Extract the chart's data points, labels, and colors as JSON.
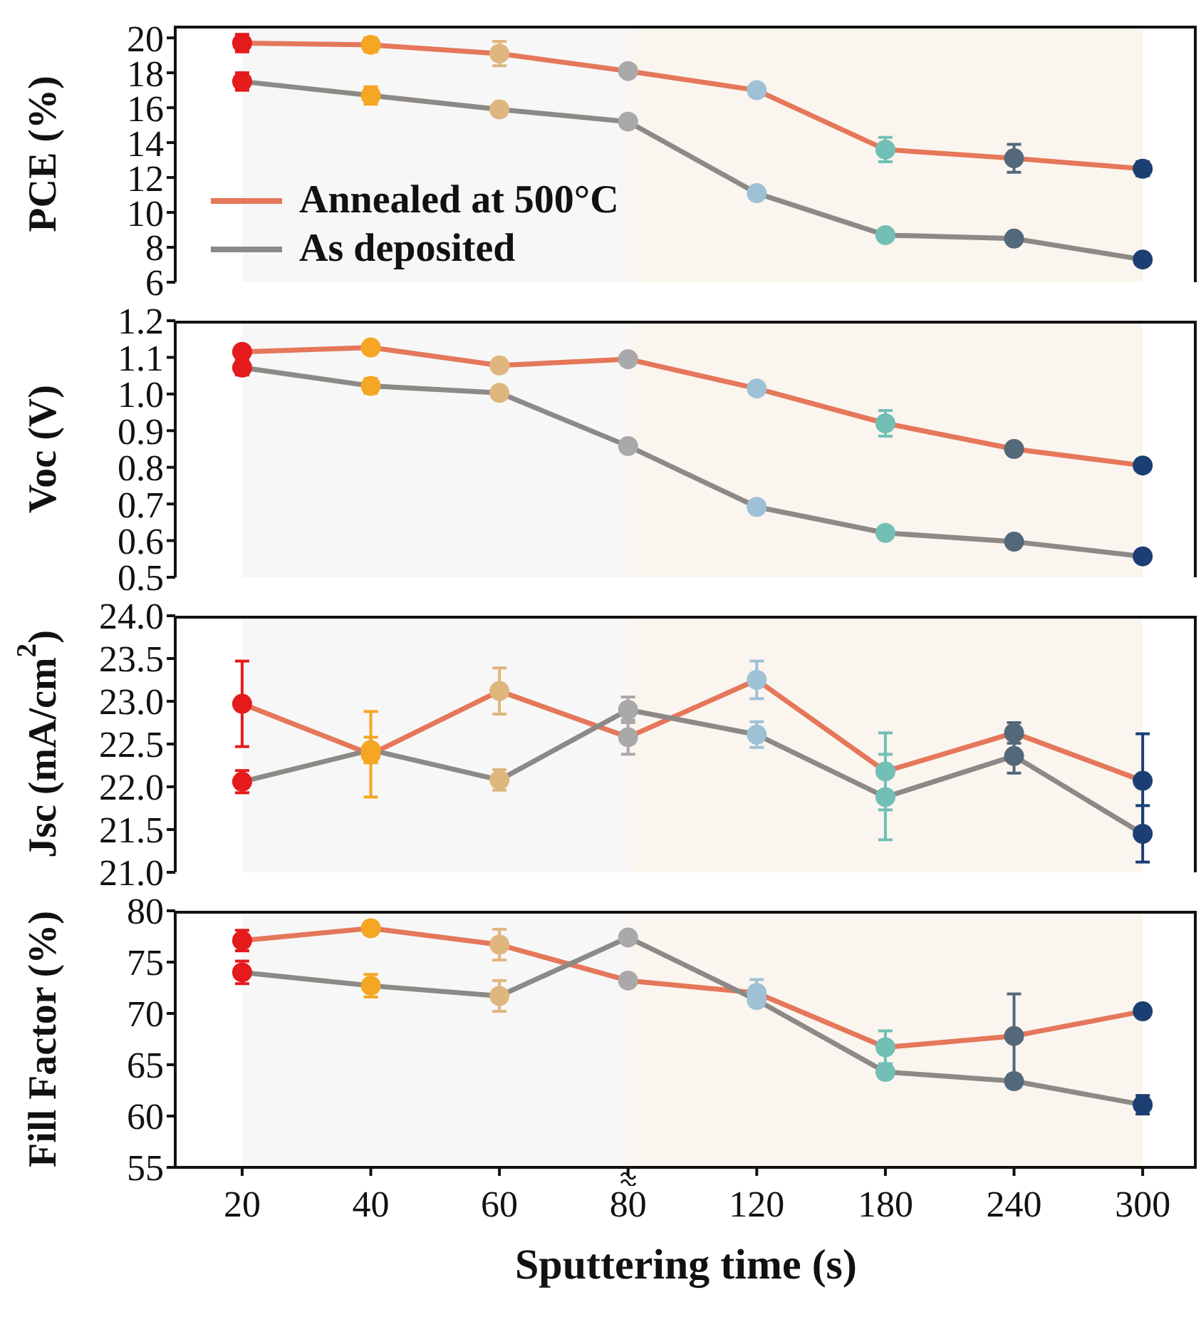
{
  "chart_data": [
    {
      "type": "line",
      "categories": [
        "20",
        "40",
        "60",
        "80",
        "120",
        "180",
        "240",
        "300"
      ],
      "ylabel": "PCE (%)",
      "ylim": [
        6,
        20.7
      ],
      "yticks": [
        6,
        8,
        10,
        12,
        14,
        16,
        18,
        20
      ],
      "tick_labels": "y",
      "marker": "circle",
      "legend": "bottom left",
      "series": [
        {
          "name": "Annealed at 500°C",
          "color": "#e5775a",
          "colors": [
            "#e41a1c",
            "#f5a623",
            "#dfb67e",
            "#a9a9a9",
            "#9ec1d6",
            "#72bfb5",
            "#536878",
            "#1b3f73"
          ],
          "values": [
            19.7,
            19.6,
            19.1,
            18.1,
            17.0,
            13.6,
            13.1,
            12.5
          ],
          "errors": [
            0.5,
            0.4,
            0.7,
            0.2,
            0.3,
            0.7,
            0.8,
            0.4
          ]
        },
        {
          "name": "As deposited",
          "color": "#8c8986",
          "colors": [
            "#e41a1c",
            "#f5a623",
            "#dfb67e",
            "#a9a9a9",
            "#9ec1d6",
            "#72bfb5",
            "#536878",
            "#1b3f73"
          ],
          "values": [
            17.5,
            16.7,
            15.9,
            15.2,
            11.1,
            8.7,
            8.5,
            7.3
          ],
          "errors": [
            0.5,
            0.5,
            0.3,
            null,
            null,
            null,
            null,
            null
          ]
        }
      ],
      "bands": [
        {
          "axis": "x",
          "from": "20",
          "to": "80",
          "color": "#f7f7f7"
        },
        {
          "axis": "x",
          "from": "80",
          "to": "300",
          "color": "#fbf5ef"
        }
      ]
    },
    {
      "type": "line",
      "categories": [
        "20",
        "40",
        "60",
        "80",
        "120",
        "180",
        "240",
        "300"
      ],
      "ylabel": "Voc (V)",
      "ylim": [
        0.5,
        1.2
      ],
      "yticks": [
        0.5,
        0.6,
        0.7,
        0.8,
        0.9,
        {
          "value": 1,
          "label": "1.0"
        },
        1.1,
        1.2
      ],
      "tick_labels": "y",
      "marker": "circle",
      "series": [
        {
          "color": "#e5775a",
          "colors": [
            "#e41a1c",
            "#f5a623",
            "#dfb67e",
            "#a9a9a9",
            "#9ec1d6",
            "#72bfb5",
            "#536878",
            "#1b3f73"
          ],
          "values": [
            1.115,
            1.127,
            1.078,
            1.095,
            1.015,
            0.92,
            0.85,
            0.805
          ],
          "errors": [
            null,
            null,
            null,
            null,
            null,
            0.035,
            null,
            null
          ]
        },
        {
          "color": "#8c8986",
          "colors": [
            "#e41a1c",
            "#f5a623",
            "#dfb67e",
            "#a9a9a9",
            "#9ec1d6",
            "#72bfb5",
            "#536878",
            "#1b3f73"
          ],
          "values": [
            1.072,
            1.022,
            1.003,
            0.858,
            0.692,
            0.621,
            0.597,
            0.557
          ],
          "errors": [
            0.02,
            0.02,
            null,
            null,
            null,
            null,
            null,
            null
          ]
        }
      ],
      "bands": [
        {
          "axis": "x",
          "from": "20",
          "to": "80",
          "color": "#f7f7f7"
        },
        {
          "axis": "x",
          "from": "80",
          "to": "300",
          "color": "#fbf5ef"
        }
      ]
    },
    {
      "type": "line",
      "categories": [
        "20",
        "40",
        "60",
        "80",
        "120",
        "180",
        "240",
        "300"
      ],
      "ylabel": "Jsc (mA/cm$^{2}$)",
      "ylim": [
        21,
        24
      ],
      "yticks": [
        {
          "value": 21,
          "label": "21.0"
        },
        21.5,
        {
          "value": 22,
          "label": "22.0"
        },
        22.5,
        {
          "value": 23,
          "label": "23.0"
        },
        23.5,
        {
          "value": 24,
          "label": "24.0"
        }
      ],
      "tick_labels": "y",
      "marker": "circle",
      "series": [
        {
          "color": "#e5775a",
          "colors": [
            "#e41a1c",
            "#f5a623",
            "#dfb67e",
            "#a9a9a9",
            "#9ec1d6",
            "#72bfb5",
            "#536878",
            "#1b3f73"
          ],
          "values": [
            22.97,
            22.38,
            23.12,
            22.58,
            23.25,
            22.18,
            22.63,
            22.07
          ],
          "errors": [
            0.5,
            0.5,
            0.27,
            0.2,
            0.22,
            0.45,
            0.12,
            0.55
          ]
        },
        {
          "color": "#8c8986",
          "colors": [
            "#e41a1c",
            "#f5a623",
            "#dfb67e",
            "#a9a9a9",
            "#9ec1d6",
            "#72bfb5",
            "#536878",
            "#1b3f73"
          ],
          "values": [
            22.06,
            22.43,
            22.08,
            22.9,
            22.61,
            21.88,
            22.36,
            21.45
          ],
          "errors": [
            0.13,
            0.15,
            0.12,
            0.15,
            0.15,
            0.5,
            0.2,
            0.33
          ]
        }
      ],
      "bands": [
        {
          "axis": "x",
          "from": "20",
          "to": "80",
          "color": "#f7f7f7"
        },
        {
          "axis": "x",
          "from": "80",
          "to": "300",
          "color": "#fbf5ef"
        }
      ]
    },
    {
      "type": "line",
      "categories": [
        "20",
        "40",
        "60",
        "80",
        "120",
        "180",
        "240",
        "300"
      ],
      "xlabel": "Sputtering time (s)",
      "ylabel": "Fill Factor (%)",
      "ylim": [
        55,
        80
      ],
      "yticks": [
        55,
        60,
        65,
        70,
        75,
        80
      ],
      "marker": "circle",
      "series": [
        {
          "color": "#e5775a",
          "colors": [
            "#e41a1c",
            "#f5a623",
            "#dfb67e",
            "#a9a9a9",
            "#9ec1d6",
            "#72bfb5",
            "#536878",
            "#1b3f73"
          ],
          "values": [
            77.1,
            78.3,
            76.7,
            73.2,
            72.0,
            66.7,
            67.8,
            70.2
          ],
          "errors": [
            1.0,
            0.6,
            1.5,
            0.5,
            1.3,
            1.6,
            4.1,
            null
          ]
        },
        {
          "color": "#8c8986",
          "colors": [
            "#e41a1c",
            "#f5a623",
            "#dfb67e",
            "#a9a9a9",
            "#9ec1d6",
            "#72bfb5",
            "#536878",
            "#1b3f73"
          ],
          "values": [
            74.0,
            72.7,
            71.7,
            77.4,
            71.3,
            64.3,
            63.4,
            61.1
          ],
          "errors": [
            1.1,
            1.1,
            1.5,
            null,
            null,
            0.6,
            0.6,
            0.9
          ]
        }
      ],
      "bands": [
        {
          "axis": "x",
          "from": "20",
          "to": "80",
          "color": "#f7f7f7"
        },
        {
          "axis": "x",
          "from": "80",
          "to": "300",
          "color": "#fbf5ef"
        }
      ]
    }
  ]
}
